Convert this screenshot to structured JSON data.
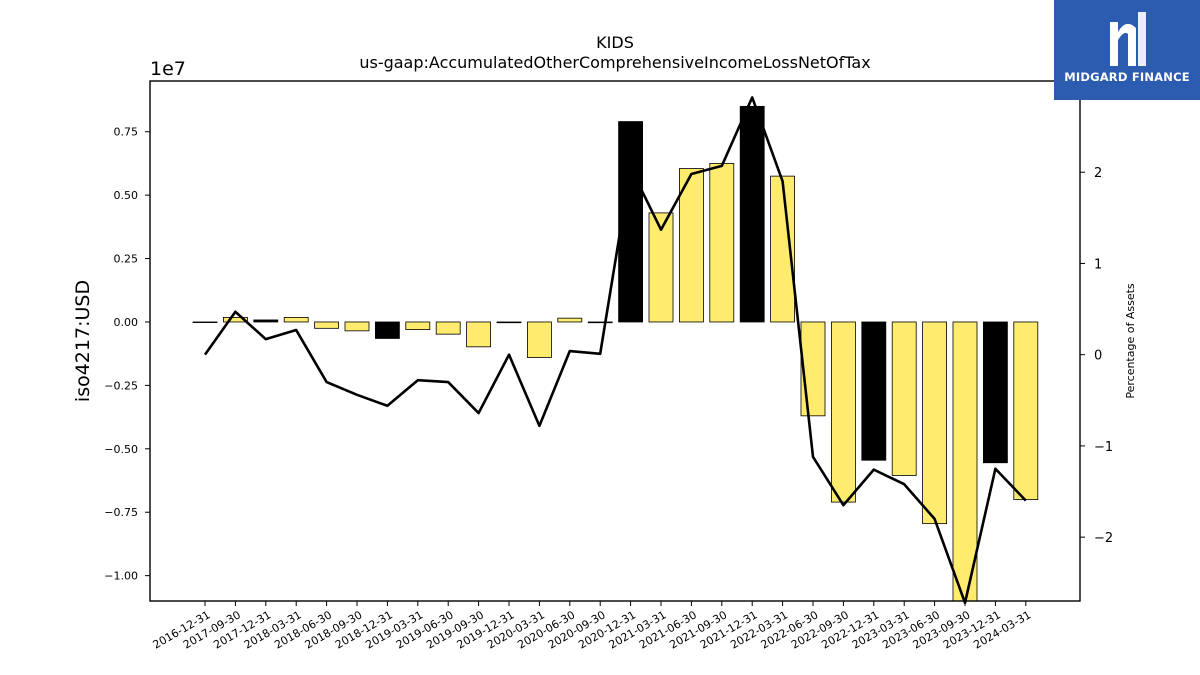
{
  "chart_data": {
    "type": "bar",
    "title": "KIDS",
    "subtitle": "us-gaap:AccumulatedOtherComprehensiveIncomeLossNetOfTax",
    "ylabel": "iso4217:USD",
    "y2label": "Percentage of Assets",
    "offset_text": "1e7",
    "ylim": [
      -1.1,
      0.95
    ],
    "y2lim": [
      -2.7,
      3.0
    ],
    "yticks": [
      -1.0,
      -0.75,
      -0.5,
      -0.25,
      0.0,
      0.25,
      0.5,
      0.75
    ],
    "ytick_labels": [
      "−1.00",
      "−0.75",
      "−0.50",
      "−0.25",
      "0.00",
      "0.25",
      "0.50",
      "0.75"
    ],
    "y2ticks": [
      -2,
      -1,
      0,
      1,
      2
    ],
    "y2tick_labels": [
      "−2",
      "−1",
      "0",
      "1",
      "2"
    ],
    "grid": false,
    "colors": {
      "q_bar": "#ffec6e",
      "fy_bar": "#000000",
      "line": "#000000",
      "bar_edge": "#000000"
    },
    "categories": [
      "2016-12-31",
      "2017-09-30",
      "2017-12-31",
      "2018-03-31",
      "2018-06-30",
      "2018-09-30",
      "2018-12-31",
      "2019-03-31",
      "2019-06-30",
      "2019-09-30",
      "2019-12-31",
      "2020-03-31",
      "2020-06-30",
      "2020-09-30",
      "2020-12-31",
      "2021-03-31",
      "2021-06-30",
      "2021-09-30",
      "2021-12-31",
      "2022-03-31",
      "2022-06-30",
      "2022-09-30",
      "2022-12-31",
      "2023-03-31",
      "2023-06-30",
      "2023-09-30",
      "2023-12-31",
      "2024-03-31"
    ],
    "series": [
      {
        "kind": "bar",
        "axis": "left",
        "values": [
          -0.002,
          0.018,
          0.008,
          0.018,
          -0.025,
          -0.035,
          -0.065,
          -0.03,
          -0.048,
          -0.098,
          -0.003,
          -0.14,
          0.015,
          -0.003,
          0.79,
          0.43,
          0.605,
          0.625,
          0.85,
          0.575,
          -0.37,
          -0.71,
          -0.545,
          -0.605,
          -0.795,
          -1.1,
          -0.555,
          -0.7
        ],
        "fiscal_year_end": [
          false,
          false,
          true,
          false,
          false,
          false,
          true,
          false,
          false,
          false,
          true,
          false,
          false,
          true,
          true,
          false,
          false,
          false,
          true,
          false,
          false,
          false,
          true,
          false,
          false,
          false,
          true,
          false
        ]
      },
      {
        "kind": "line",
        "axis": "right",
        "values": [
          0.0,
          0.47,
          0.17,
          0.27,
          -0.3,
          -0.44,
          -0.56,
          -0.28,
          -0.3,
          -0.64,
          0.0,
          -0.78,
          0.04,
          0.01,
          2.05,
          1.37,
          1.98,
          2.07,
          2.82,
          1.9,
          -1.12,
          -1.65,
          -1.26,
          -1.42,
          -1.8,
          -2.72,
          -1.25,
          -1.6
        ]
      }
    ]
  },
  "logo": {
    "name": "MIDGARD FINANCE"
  }
}
